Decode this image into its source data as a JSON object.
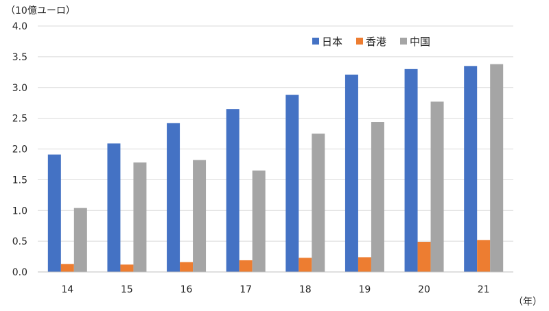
{
  "chart_data": {
    "type": "bar",
    "y_unit_label": "（10億ユーロ）",
    "x_unit_label": "（年）",
    "categories": [
      "14",
      "15",
      "16",
      "17",
      "18",
      "19",
      "20",
      "21"
    ],
    "series": [
      {
        "name": "日本",
        "color": "#4472C4",
        "values": [
          1.91,
          2.09,
          2.42,
          2.65,
          2.88,
          3.21,
          3.3,
          3.35
        ]
      },
      {
        "name": "香港",
        "color": "#ED7D31",
        "values": [
          0.13,
          0.12,
          0.16,
          0.19,
          0.23,
          0.24,
          0.49,
          0.52
        ]
      },
      {
        "name": "中国",
        "color": "#A5A5A5",
        "values": [
          1.04,
          1.78,
          1.82,
          1.65,
          2.25,
          2.44,
          2.77,
          3.38
        ]
      }
    ],
    "ylim": [
      0,
      4.0
    ],
    "yticks": [
      "0.0",
      "0.5",
      "1.0",
      "1.5",
      "2.0",
      "2.5",
      "3.0",
      "3.5",
      "4.0"
    ],
    "grid": true,
    "legend_position": "top-right"
  }
}
